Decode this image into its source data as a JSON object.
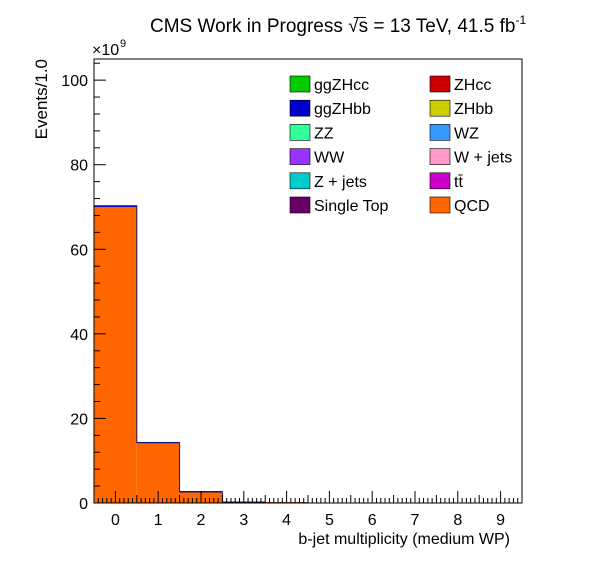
{
  "header": {
    "title_prefix": "CMS Work in Progress",
    "sqrt_symbol": "√",
    "energy_var": "s",
    "energy_text": " = 13 TeV, 41.5 fb",
    "lumi_exponent": "-1"
  },
  "chart_data": {
    "type": "bar",
    "stacked": true,
    "ylabel": "Events/1.0",
    "xlabel": "b-jet multiplicity (medium WP)",
    "y_multiplier_label": "×10",
    "y_multiplier_exponent": "9",
    "xlim": [
      -0.5,
      9.5
    ],
    "ylim": [
      0,
      105
    ],
    "y_units": "1e9 events",
    "x_ticks": [
      "0",
      "1",
      "2",
      "3",
      "4",
      "5",
      "6",
      "7",
      "8",
      "9"
    ],
    "y_ticks": [
      "0",
      "20",
      "40",
      "60",
      "80",
      "100"
    ],
    "categories": [
      0,
      1,
      2,
      3,
      4,
      5,
      6,
      7,
      8,
      9
    ],
    "series": [
      {
        "name": "QCD",
        "color": "#ff6600",
        "values": [
          70.0,
          14.2,
          2.6,
          0.25,
          0.02,
          0,
          0,
          0,
          0,
          0
        ]
      },
      {
        "name": "ggZHbb",
        "color": "#0000cc",
        "values": [
          0.3,
          0.05,
          0.01,
          0,
          0,
          0,
          0,
          0,
          0,
          0
        ]
      }
    ],
    "legend": {
      "placement": "top-right",
      "entries": [
        {
          "name": "ggZHcc",
          "color": "#00cc00"
        },
        {
          "name": "ZHcc",
          "color": "#cc0000"
        },
        {
          "name": "ggZHbb",
          "color": "#0000cc"
        },
        {
          "name": "ZHbb",
          "color": "#cccc00"
        },
        {
          "name": "ZZ",
          "color": "#33ff99"
        },
        {
          "name": "WZ",
          "color": "#3399ff"
        },
        {
          "name": "WW",
          "color": "#9933ff"
        },
        {
          "name": "W + jets",
          "color": "#ff99cc"
        },
        {
          "name": "Z + jets",
          "color": "#00cccc"
        },
        {
          "name": "tt̄",
          "color": "#cc00cc"
        },
        {
          "name": "Single Top",
          "color": "#660066"
        },
        {
          "name": "QCD",
          "color": "#ff6600"
        }
      ]
    }
  }
}
